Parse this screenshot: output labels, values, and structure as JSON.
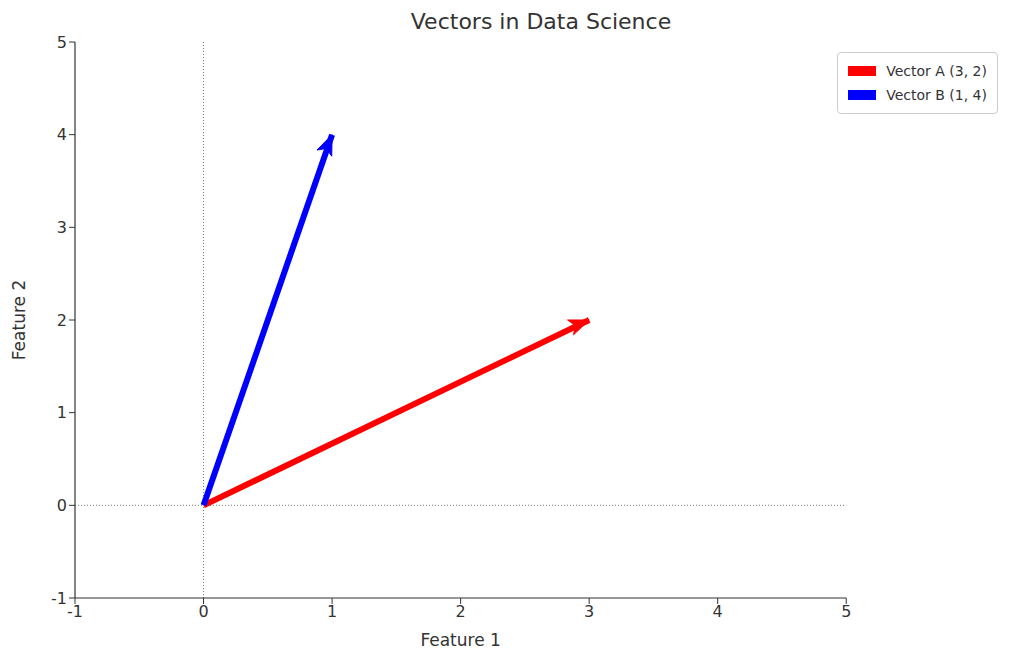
{
  "chart_data": {
    "type": "vector",
    "title": "Vectors in Data Science",
    "x_label": "Feature 1",
    "y_label": "Feature 2",
    "xlim": [
      -1,
      5
    ],
    "ylim": [
      -1,
      5
    ],
    "xticks": [
      -1,
      0,
      1,
      2,
      3,
      4,
      5
    ],
    "yticks": [
      -1,
      0,
      1,
      2,
      3,
      4,
      5
    ],
    "grid": false,
    "legend": "upper right",
    "series": [
      {
        "name": "Vector A (3, 2)",
        "color": "#ff0000",
        "x": [
          0,
          3
        ],
        "values": [
          0,
          2
        ]
      },
      {
        "name": "Vector B (1, 4)",
        "color": "#0000ff",
        "x": [
          0,
          1
        ],
        "values": [
          0,
          4
        ]
      }
    ]
  }
}
